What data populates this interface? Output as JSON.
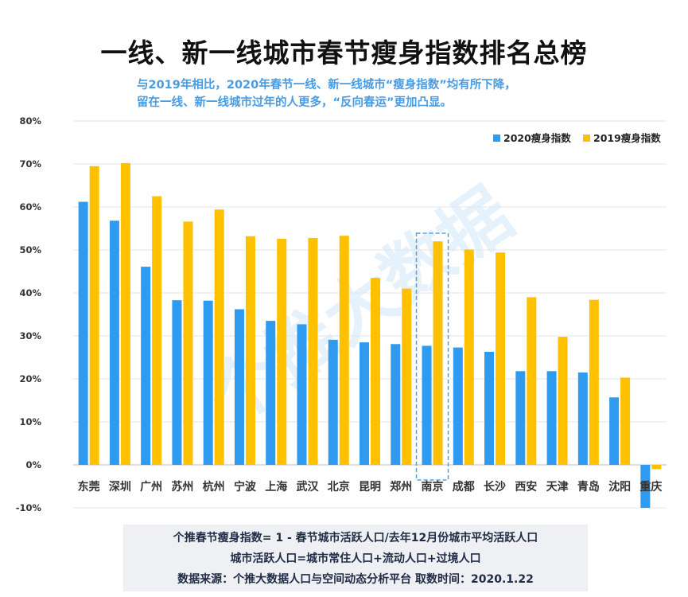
{
  "title": "一线、新一线城市春节瘦身指数排名总榜",
  "subtitle": [
    "与2019年相比，2020年春节一线、新一线城市“瘦身指数”均有所下降，",
    "留在一线、新一线城市过年的人更多，“反向春运”更加凸显。"
  ],
  "watermark": "个推大数据",
  "footer": [
    "个推春节瘦身指数= 1 - 春节城市活跃人口/去年12月份城市平均活跃人口",
    "城市活跃人口=城市常住人口+流动人口+过境人口",
    "数据来源：个推大数据人口与空间动态分析平台 取数时间：2020.1.22"
  ],
  "colors": {
    "s2020": "#2e9bf0",
    "s2019": "#ffc000",
    "highlight": "#4da3e8",
    "watermark": "#cfe6f7"
  },
  "chart_data": {
    "type": "bar",
    "categories": [
      "东莞",
      "深圳",
      "广州",
      "苏州",
      "杭州",
      "宁波",
      "上海",
      "武汉",
      "北京",
      "昆明",
      "郑州",
      "南京",
      "成都",
      "长沙",
      "西安",
      "天津",
      "青岛",
      "沈阳",
      "重庆"
    ],
    "series": [
      {
        "name": "2020瘦身指数",
        "values": [
          61.2,
          56.8,
          46.1,
          38.3,
          38.2,
          36.2,
          33.5,
          32.7,
          29.1,
          28.5,
          28.1,
          27.7,
          27.3,
          26.3,
          21.8,
          21.8,
          21.5,
          15.7,
          -10.0
        ]
      },
      {
        "name": "2019瘦身指数",
        "values": [
          69.5,
          70.2,
          62.5,
          56.6,
          59.4,
          53.2,
          52.6,
          52.8,
          53.3,
          43.5,
          41.0,
          52.0,
          50.1,
          49.4,
          39.0,
          29.8,
          38.4,
          20.3,
          -1.0
        ]
      }
    ],
    "yticks": [
      "-10%",
      "0%",
      "10%",
      "20%",
      "30%",
      "40%",
      "50%",
      "60%",
      "70%",
      "80%"
    ],
    "ylim": [
      -10,
      80
    ],
    "highlight_category": "南京",
    "legend_position": "top-right",
    "grid": true
  }
}
